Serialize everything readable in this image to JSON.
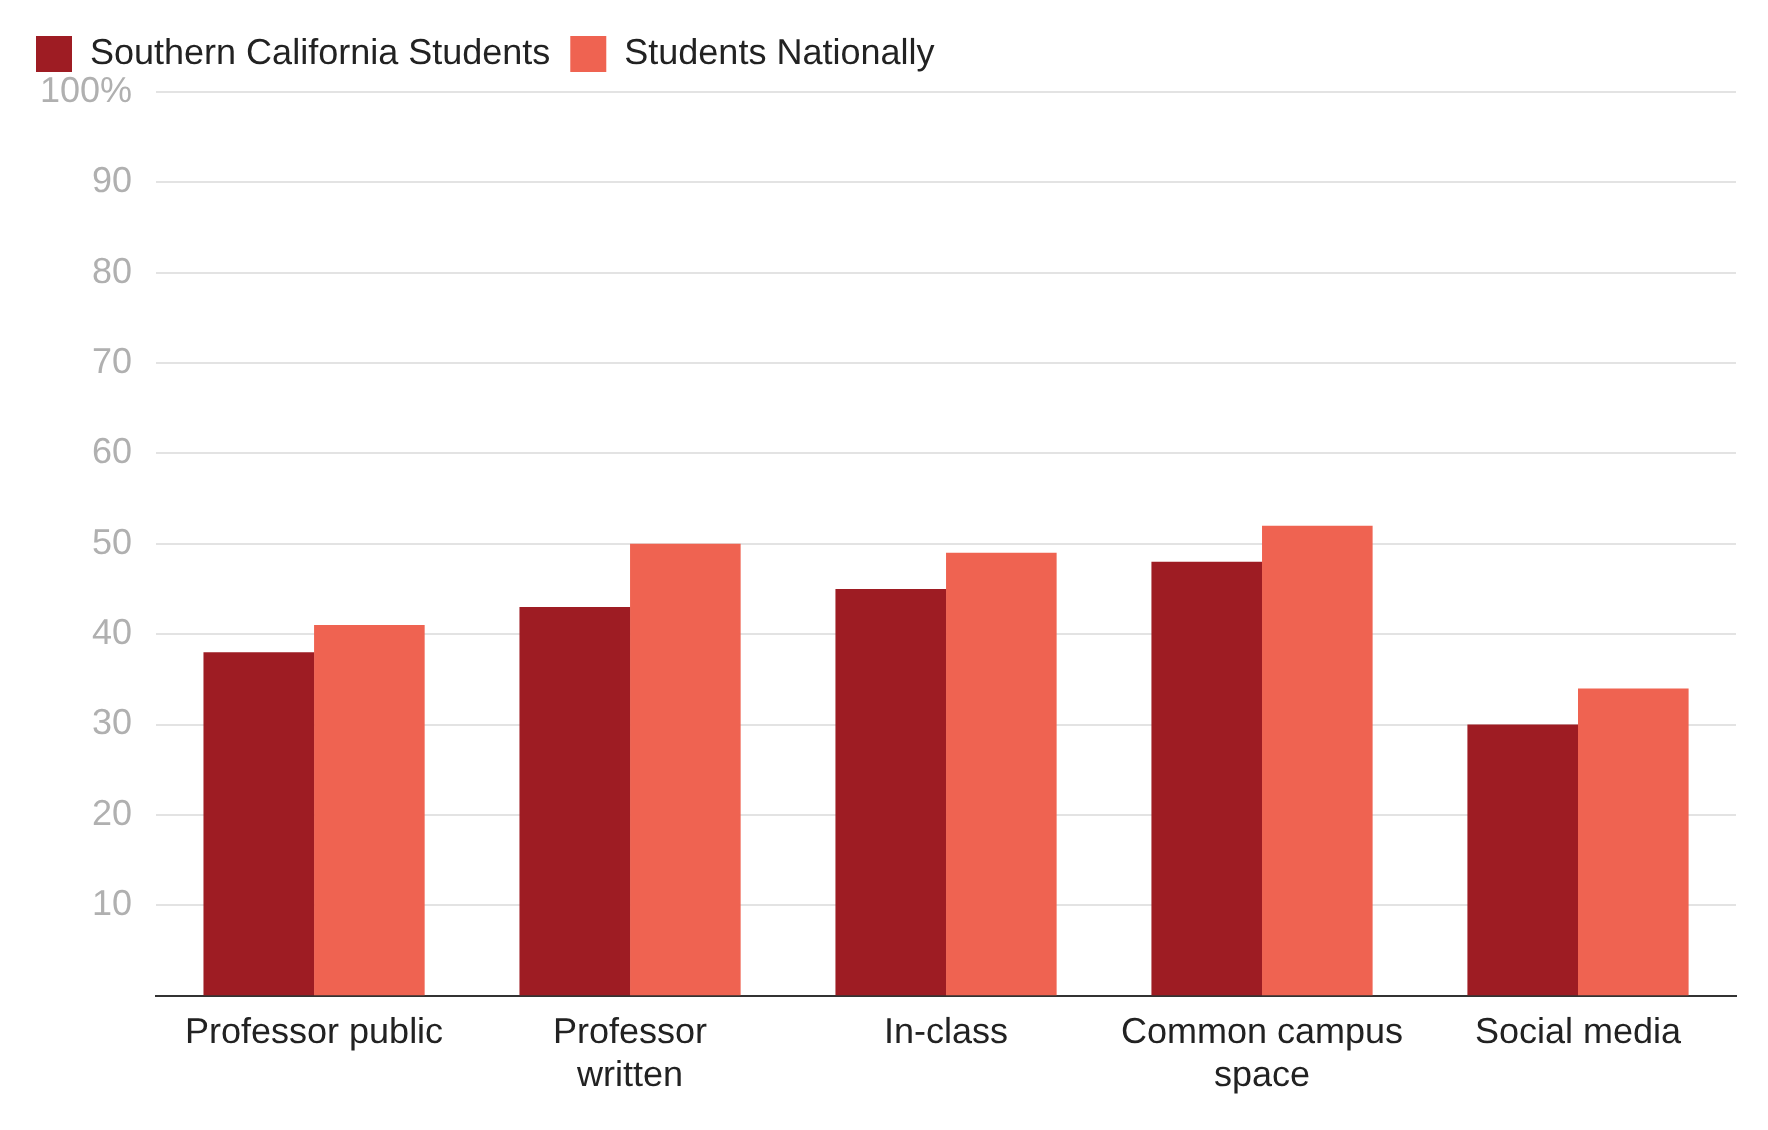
{
  "chart_data": {
    "type": "bar",
    "categories": [
      "Professor public",
      "Professor written",
      "In-class",
      "Common campus space",
      "Social media"
    ],
    "series": [
      {
        "name": "Southern California Students",
        "color": "#9e1c23",
        "values": [
          38,
          43,
          45,
          48,
          30
        ]
      },
      {
        "name": "Students Nationally",
        "color": "#ef6351",
        "values": [
          41,
          50,
          49,
          52,
          34
        ]
      }
    ],
    "ylim": [
      0,
      100
    ],
    "yticks": [
      10,
      20,
      30,
      40,
      50,
      60,
      70,
      80,
      90,
      {
        "value": 100,
        "label": "100%"
      }
    ],
    "grid": "y",
    "legend": "top left"
  }
}
